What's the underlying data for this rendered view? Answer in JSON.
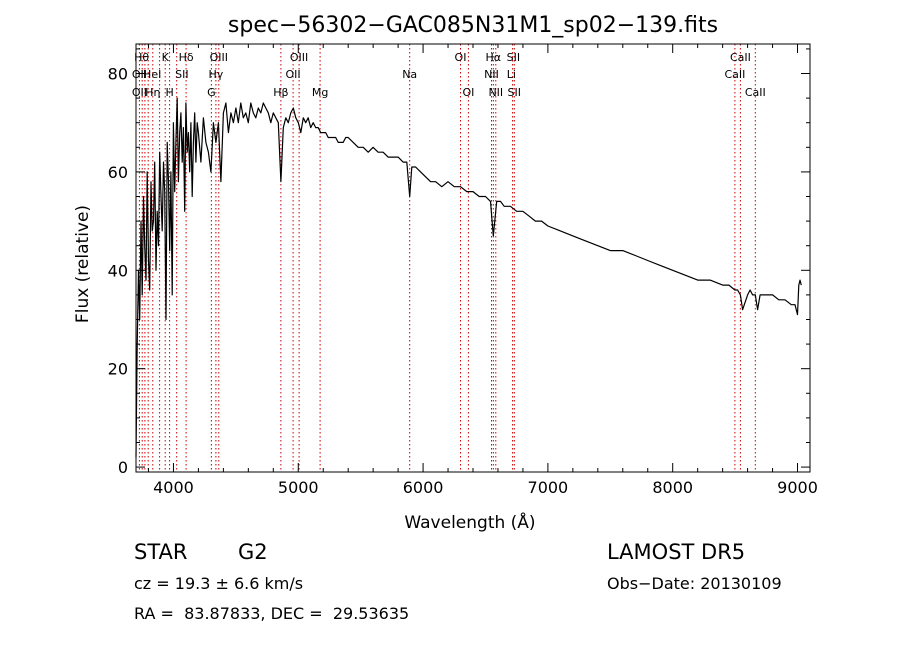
{
  "chart_data": {
    "type": "line",
    "title": "spec−56302−GAC085N31M1_sp02−139.fits",
    "xlabel": "Wavelength (Å)",
    "ylabel": "Flux (relative)",
    "xlim": [
      3700,
      9100
    ],
    "ylim": [
      -1,
      86
    ],
    "xticks": [
      4000,
      5000,
      6000,
      7000,
      8000,
      9000
    ],
    "yticks": [
      0,
      20,
      40,
      60,
      80
    ],
    "series": [
      {
        "x": [
          3700,
          3710,
          3720,
          3730,
          3740,
          3750,
          3760,
          3770,
          3780,
          3790,
          3800,
          3810,
          3820,
          3830,
          3840,
          3850,
          3860,
          3870,
          3880,
          3890,
          3900,
          3910,
          3920,
          3930,
          3940,
          3950,
          3960,
          3970,
          3980,
          3990,
          4000,
          4010,
          4020,
          4030,
          4040,
          4050,
          4060,
          4070,
          4080,
          4090,
          4100,
          4110,
          4120,
          4130,
          4140,
          4150,
          4160,
          4170,
          4180,
          4190,
          4200,
          4220,
          4240,
          4260,
          4280,
          4300,
          4320,
          4340,
          4360,
          4380,
          4400,
          4420,
          4440,
          4460,
          4480,
          4500,
          4520,
          4540,
          4560,
          4580,
          4600,
          4620,
          4640,
          4660,
          4680,
          4700,
          4720,
          4740,
          4760,
          4780,
          4800,
          4820,
          4840,
          4861,
          4880,
          4900,
          4920,
          4940,
          4960,
          4980,
          5000,
          5020,
          5040,
          5060,
          5080,
          5100,
          5120,
          5140,
          5160,
          5180,
          5200,
          5220,
          5240,
          5260,
          5280,
          5300,
          5320,
          5340,
          5360,
          5380,
          5400,
          5440,
          5480,
          5520,
          5560,
          5600,
          5640,
          5680,
          5720,
          5760,
          5800,
          5840,
          5870,
          5893,
          5910,
          5940,
          5980,
          6020,
          6060,
          6100,
          6150,
          6200,
          6250,
          6300,
          6350,
          6400,
          6450,
          6500,
          6540,
          6563,
          6590,
          6620,
          6650,
          6700,
          6750,
          6800,
          6850,
          6900,
          6950,
          7000,
          7100,
          7200,
          7300,
          7400,
          7500,
          7600,
          7700,
          7800,
          7900,
          8000,
          8100,
          8200,
          8300,
          8400,
          8450,
          8498,
          8520,
          8542,
          8560,
          8600,
          8620,
          8640,
          8662,
          8680,
          8700,
          8750,
          8800,
          8850,
          8900,
          8950,
          8980,
          9000,
          9010,
          9020,
          9030
        ],
        "y": [
          2,
          25,
          40,
          30,
          50,
          35,
          55,
          45,
          38,
          60,
          42,
          36,
          58,
          48,
          50,
          62,
          40,
          52,
          45,
          64,
          55,
          48,
          62,
          56,
          30,
          66,
          58,
          44,
          60,
          35,
          70,
          56,
          66,
          75,
          58,
          68,
          72,
          62,
          69,
          52,
          74,
          64,
          68,
          60,
          70,
          55,
          66,
          72,
          62,
          70,
          68,
          62,
          71,
          66,
          64,
          60,
          70,
          66,
          70,
          58,
          72,
          74,
          68,
          72,
          70,
          73,
          70,
          74,
          71,
          72,
          70,
          74,
          72,
          71,
          73,
          72,
          74,
          73,
          72,
          70,
          72,
          71,
          70,
          58,
          69,
          71,
          70,
          72,
          73,
          71,
          70,
          68,
          71,
          70,
          71,
          69,
          70,
          69,
          69,
          68,
          68,
          68,
          67,
          67,
          67,
          67,
          66,
          66,
          66,
          67,
          67,
          66,
          65,
          65,
          64,
          65,
          64,
          64,
          63,
          63,
          63,
          62,
          62,
          55,
          61,
          61,
          60,
          59,
          58,
          58,
          57,
          58,
          57,
          57,
          56,
          56,
          55,
          55,
          54,
          47,
          54,
          54,
          53,
          53,
          52,
          52,
          51,
          50,
          50,
          49,
          48,
          47,
          46,
          45,
          44,
          44,
          43,
          42,
          41,
          40,
          39,
          38,
          38,
          37,
          37,
          36,
          36,
          35,
          32,
          35,
          36,
          35,
          35,
          32,
          35,
          35,
          35,
          34,
          34,
          33,
          33,
          31,
          37,
          38,
          37
        ]
      }
    ],
    "annotations": {
      "line_markers": [
        3727,
        3750,
        3771,
        3798,
        3835,
        3889,
        3934,
        3969,
        4026,
        4101,
        4304,
        4340,
        4363,
        4861,
        4959,
        5007,
        5175,
        5893,
        6300,
        6363,
        6548,
        6563,
        6583,
        6717,
        6731,
        8498,
        8542,
        8662
      ],
      "labels": [
        {
          "text": "Hθ",
          "x": 3745,
          "row": 1
        },
        {
          "text": "K",
          "x": 3934,
          "row": 1
        },
        {
          "text": "Hδ",
          "x": 4101,
          "row": 1
        },
        {
          "text": "OIII",
          "x": 4363,
          "row": 1
        },
        {
          "text": "OIII",
          "x": 5007,
          "row": 1
        },
        {
          "text": "OI",
          "x": 6300,
          "row": 1
        },
        {
          "text": "Hα",
          "x": 6563,
          "row": 1
        },
        {
          "text": "SII",
          "x": 6724,
          "row": 1
        },
        {
          "text": "CaII",
          "x": 8542,
          "row": 1
        },
        {
          "text": "OII",
          "x": 3727,
          "row": 2
        },
        {
          "text": "HeI",
          "x": 3830,
          "row": 2
        },
        {
          "text": "SII",
          "x": 4068,
          "row": 2
        },
        {
          "text": "Hγ",
          "x": 4340,
          "row": 2
        },
        {
          "text": "OII",
          "x": 4959,
          "row": 2
        },
        {
          "text": "Na",
          "x": 5893,
          "row": 2
        },
        {
          "text": "NII",
          "x": 6548,
          "row": 2
        },
        {
          "text": "Li",
          "x": 6708,
          "row": 2
        },
        {
          "text": "CaII",
          "x": 8498,
          "row": 2
        },
        {
          "text": "OII",
          "x": 3727,
          "row": 3
        },
        {
          "text": "Hη",
          "x": 3835,
          "row": 3
        },
        {
          "text": "H",
          "x": 3969,
          "row": 3
        },
        {
          "text": "G",
          "x": 4304,
          "row": 3
        },
        {
          "text": "Hβ",
          "x": 4861,
          "row": 3
        },
        {
          "text": "Mg",
          "x": 5175,
          "row": 3
        },
        {
          "text": "OI",
          "x": 6363,
          "row": 3
        },
        {
          "text": "NII",
          "x": 6583,
          "row": 3
        },
        {
          "text": "SII",
          "x": 6731,
          "row": 3
        },
        {
          "text": "CaII",
          "x": 8662,
          "row": 3
        }
      ]
    },
    "grid": false,
    "marker_color": "#cc0000"
  },
  "info": {
    "class_label": "STAR",
    "subclass": "G2",
    "survey": "LAMOST DR5",
    "cz": "cz = 19.3 ± 6.6 km/s",
    "obs_date": "Obs−Date: 20130109",
    "coords": "RA =  83.87833, DEC =  29.53635"
  }
}
